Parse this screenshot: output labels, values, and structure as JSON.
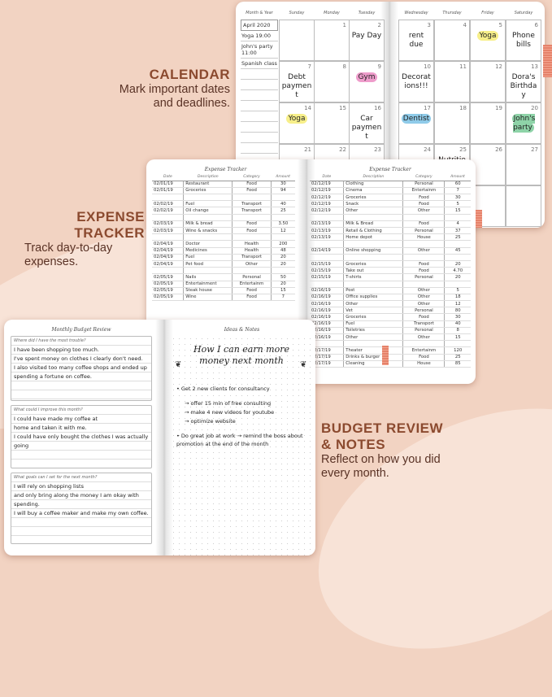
{
  "colors": {
    "background": "#f2d3c2",
    "heading": "#8b4a2f",
    "yellow": "#f7ef8a",
    "pink": "#ee9ccb",
    "blue": "#8fcbe9",
    "green": "#8ed3a8",
    "orange": "#f4a86a"
  },
  "promos": [
    {
      "title": "CALENDAR",
      "text": "Mark important dates and deadlines."
    },
    {
      "title": "EXPENSE TRACKER",
      "text": "Track day-to-day expenses."
    },
    {
      "title": "BUDGET REVIEW & NOTES",
      "text": "Reflect on how you did every month."
    }
  ],
  "calendar": {
    "month_label": "Month & Year",
    "days": [
      "Sunday",
      "Monday",
      "Tuesday",
      "Wednesday",
      "Thursday",
      "Friday",
      "Saturday"
    ],
    "month_notes": [
      "April 2020",
      "Yoga 19:00",
      "John's party 11:00",
      "Spanish class"
    ],
    "weeks": [
      [
        {
          "n": "",
          "t": ""
        },
        {
          "n": "1",
          "t": ""
        },
        {
          "n": "2",
          "t": "Pay Day"
        },
        {
          "n": "3",
          "t": "rent due"
        },
        {
          "n": "4",
          "t": ""
        },
        {
          "n": "5",
          "t": "Yoga",
          "h": "yellow"
        },
        {
          "n": "6",
          "t": "Phone bills"
        }
      ],
      [
        {
          "n": "7",
          "t": "Debt payment"
        },
        {
          "n": "8",
          "t": ""
        },
        {
          "n": "9",
          "t": "Gym",
          "h": "pink"
        },
        {
          "n": "10",
          "t": "Decorations!!!"
        },
        {
          "n": "11",
          "t": ""
        },
        {
          "n": "12",
          "t": ""
        },
        {
          "n": "13",
          "t": "Dora's Birthday"
        }
      ],
      [
        {
          "n": "14",
          "t": "Yoga",
          "h": "yellow"
        },
        {
          "n": "15",
          "t": ""
        },
        {
          "n": "16",
          "t": "Car payment"
        },
        {
          "n": "17",
          "t": "Dentist",
          "h": "blue"
        },
        {
          "n": "18",
          "t": ""
        },
        {
          "n": "19",
          "t": ""
        },
        {
          "n": "20",
          "t": "John's party",
          "h": "green"
        }
      ],
      [
        {
          "n": "21",
          "t": ""
        },
        {
          "n": "22",
          "t": ""
        },
        {
          "n": "23",
          "t": ""
        },
        {
          "n": "24",
          "t": ""
        },
        {
          "n": "25",
          "t": "Nutrition ...ist ...m"
        },
        {
          "n": "26",
          "t": ""
        },
        {
          "n": "27",
          "t": ""
        }
      ],
      [
        {
          "n": "",
          "t": ""
        },
        {
          "n": "",
          "t": ""
        },
        {
          "n": "",
          "t": ""
        },
        {
          "n": "",
          "t": ""
        },
        {
          "n": "",
          "t": ""
        },
        {
          "n": "",
          "t": ""
        },
        {
          "n": "",
          "t": ""
        }
      ]
    ]
  },
  "expense": {
    "title": "Expense Tracker",
    "columns": [
      "Date",
      "Description",
      "Category",
      "Amount"
    ],
    "left_rows": [
      [
        "02/01/19",
        "Restaurant",
        "Food",
        "30"
      ],
      [
        "02/01/19",
        "Groceries",
        "Food",
        "94"
      ],
      [
        "",
        "",
        "",
        ""
      ],
      [
        "02/02/19",
        "Fuel",
        "Transport",
        "40"
      ],
      [
        "02/02/19",
        "Oil change",
        "Transport",
        "25"
      ],
      [
        "",
        "",
        "",
        ""
      ],
      [
        "02/03/19",
        "Milk & bread",
        "Food",
        "3.50"
      ],
      [
        "02/03/19",
        "Wine & snacks",
        "Food",
        "12"
      ],
      [
        "",
        "",
        "",
        ""
      ],
      [
        "02/04/19",
        "Doctor",
        "Health",
        "200"
      ],
      [
        "02/04/19",
        "Medicines",
        "Health",
        "48"
      ],
      [
        "02/04/19",
        "Fuel",
        "Transport",
        "20"
      ],
      [
        "02/04/19",
        "Pet food",
        "Other",
        "20"
      ],
      [
        "",
        "",
        "",
        ""
      ],
      [
        "02/05/19",
        "Nails",
        "Personal",
        "50"
      ],
      [
        "02/05/19",
        "Entertainment",
        "Entertainm",
        "20"
      ],
      [
        "02/05/19",
        "Steak house",
        "Food",
        "15"
      ],
      [
        "02/05/19",
        "Wine",
        "Food",
        "7"
      ]
    ],
    "right_rows": [
      [
        "02/12/19",
        "Clothing",
        "Personal",
        "60"
      ],
      [
        "02/12/19",
        "Cinema",
        "Entertainm",
        "7"
      ],
      [
        "02/12/19",
        "Groceries",
        "Food",
        "30"
      ],
      [
        "02/12/19",
        "Snack",
        "Food",
        "5"
      ],
      [
        "02/12/19",
        "Other",
        "Other",
        "15"
      ],
      [
        "",
        "",
        "",
        ""
      ],
      [
        "02/13/19",
        "Milk & Bread",
        "Food",
        "4"
      ],
      [
        "02/13/19",
        "Retail & Clothing",
        "Personal",
        "37"
      ],
      [
        "02/13/19",
        "Home depot",
        "House",
        "25"
      ],
      [
        "",
        "",
        "",
        ""
      ],
      [
        "02/14/19",
        "Online shopping",
        "Other",
        "45"
      ],
      [
        "",
        "",
        "",
        ""
      ],
      [
        "02/15/19",
        "Groceries",
        "Food",
        "20"
      ],
      [
        "02/15/19",
        "Take out",
        "Food",
        "4.70"
      ],
      [
        "02/15/19",
        "T-shirts",
        "Personal",
        "20"
      ],
      [
        "",
        "",
        "",
        ""
      ],
      [
        "02/16/19",
        "Post",
        "Other",
        "5"
      ],
      [
        "02/16/19",
        "Office supplies",
        "Other",
        "18"
      ],
      [
        "02/16/19",
        "Other",
        "Other",
        "12"
      ],
      [
        "02/16/19",
        "Vet",
        "Personal",
        "80"
      ],
      [
        "02/16/19",
        "Groceries",
        "Food",
        "30"
      ],
      [
        "02/16/19",
        "Fuel",
        "Transport",
        "40"
      ],
      [
        "02/16/19",
        "Toiletries",
        "Personal",
        "8"
      ],
      [
        "02/16/19",
        "Other",
        "Other",
        "15"
      ],
      [
        "",
        "",
        "",
        ""
      ],
      [
        "02/17/19",
        "Theater",
        "Entertainm",
        "120"
      ],
      [
        "02/17/19",
        "Drinks & burger",
        "Food",
        "25"
      ],
      [
        "02/17/19",
        "Cleaning",
        "House",
        "85"
      ]
    ]
  },
  "review": {
    "title": "Monthly Budget Review",
    "sections": [
      {
        "q": "Where did I have the most trouble?",
        "lines": [
          "I have been shopping too much.",
          "I've spent money on clothes I clearly don't need.",
          "I also visited too many coffee shops and ended up",
          "spending a fortune on coffee."
        ]
      },
      {
        "q": "What could I improve this month?",
        "lines": [
          "I could have made my coffee at",
          "home and taken it with me.",
          "I could have only bought the clothes I was actually going"
        ]
      },
      {
        "q": "What goals can I set for the next month?",
        "lines": [
          "I will rely on shopping lists",
          "and only bring along the money I am okay with",
          "spending.",
          "I will buy a coffee maker and make my own coffee."
        ]
      }
    ]
  },
  "notes": {
    "title": "Ideas & Notes",
    "heading": "How I can earn more money next month",
    "items": [
      "• Get 2 new clients for consultancy",
      "→ offer 15 min of free consulting",
      "→ make 4 new videos for youtube",
      "→ optimize website",
      "• Do great job at work → remind the boss about promotion at the end of the month"
    ]
  }
}
